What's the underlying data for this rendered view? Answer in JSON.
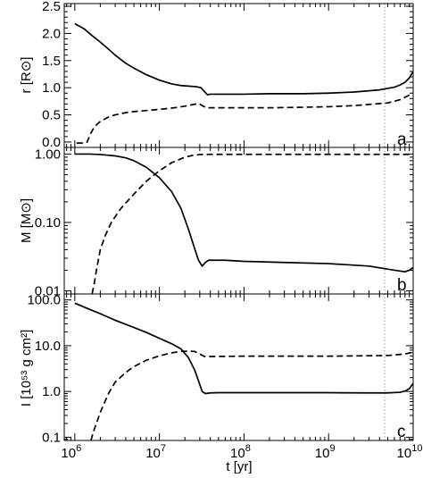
{
  "chart_data": [
    {
      "type": "line",
      "panel_label": "a",
      "ylabel": "r [R⊙]",
      "yscale": "linear",
      "ylim": [
        -0.1,
        2.55
      ],
      "yticks": [
        0.0,
        0.5,
        1.0,
        1.5,
        2.0,
        2.5
      ],
      "ytick_labels": [
        "0.0",
        "0.5",
        "1.0",
        "1.5",
        "2.0",
        "2.5"
      ],
      "series": [
        {
          "style": "solid",
          "x": [
            1000000.0,
            1300000.0,
            1600000.0,
            2000000.0,
            2500000.0,
            3000000.0,
            4000000.0,
            5000000.0,
            7000000.0,
            10000000.0,
            14000000.0,
            18000000.0,
            22000000.0,
            27000000.0,
            31000000.0,
            34000000.0,
            37000000.0,
            40000000.0,
            50000000.0,
            100000000.0,
            200000000.0,
            500000000.0,
            1000000000.0,
            2000000000.0,
            4000000000.0,
            6000000000.0,
            7000000000.0,
            8000000000.0,
            9000000000.0,
            10000000000.0
          ],
          "y": [
            2.18,
            2.08,
            1.96,
            1.84,
            1.71,
            1.6,
            1.45,
            1.36,
            1.24,
            1.14,
            1.07,
            1.04,
            1.03,
            1.02,
            1.0,
            0.93,
            0.87,
            0.88,
            0.88,
            0.88,
            0.89,
            0.89,
            0.9,
            0.92,
            0.96,
            1.01,
            1.05,
            1.1,
            1.18,
            1.3
          ]
        },
        {
          "style": "dashed",
          "x": [
            1050000.0,
            1300000.0,
            1400000.0,
            1500000.0,
            1700000.0,
            2000000.0,
            2500000.0,
            3000000.0,
            4000000.0,
            5000000.0,
            7000000.0,
            10000000.0,
            15000000.0,
            20000000.0,
            25000000.0,
            29000000.0,
            33000000.0,
            36000000.0,
            40000000.0,
            50000000.0,
            100000000.0,
            200000000.0,
            500000000.0,
            1000000000.0,
            2000000000.0,
            5000000000.0,
            7000000000.0,
            10000000000.0
          ],
          "y": [
            -0.02,
            -0.02,
            0.0,
            0.12,
            0.28,
            0.38,
            0.46,
            0.5,
            0.54,
            0.56,
            0.58,
            0.6,
            0.63,
            0.66,
            0.69,
            0.71,
            0.66,
            0.63,
            0.63,
            0.63,
            0.63,
            0.63,
            0.64,
            0.65,
            0.67,
            0.72,
            0.78,
            0.9
          ]
        }
      ]
    },
    {
      "type": "line",
      "panel_label": "b",
      "ylabel": "M [M⊙]",
      "yscale": "log",
      "ylim": [
        0.009,
        1.25
      ],
      "yticks": [
        0.01,
        0.1,
        1.0
      ],
      "ytick_labels": [
        "0.01",
        "0.10",
        "1.00"
      ],
      "series": [
        {
          "style": "solid",
          "x": [
            1000000.0,
            1500000.0,
            2000000.0,
            3000000.0,
            4000000.0,
            5000000.0,
            7000000.0,
            10000000.0,
            14000000.0,
            18000000.0,
            22000000.0,
            26000000.0,
            29000000.0,
            32000000.0,
            35000000.0,
            38000000.0,
            45000000.0,
            60000000.0,
            100000000.0,
            300000000.0,
            1000000000.0,
            3000000000.0,
            6000000000.0,
            8000000000.0,
            9000000000.0,
            10000000000.0
          ],
          "y": [
            1.0,
            1.0,
            0.985,
            0.94,
            0.88,
            0.8,
            0.64,
            0.45,
            0.28,
            0.16,
            0.08,
            0.042,
            0.028,
            0.023,
            0.026,
            0.028,
            0.028,
            0.028,
            0.027,
            0.026,
            0.025,
            0.023,
            0.02,
            0.019,
            0.02,
            0.022
          ]
        },
        {
          "style": "dashed",
          "x": [
            1600000.0,
            1700000.0,
            1800000.0,
            2000000.0,
            2300000.0,
            2700000.0,
            3500000.0,
            5000000.0,
            7000000.0,
            10000000.0,
            14000000.0,
            20000000.0,
            25000000.0,
            30000000.0,
            40000000.0,
            100000000.0,
            1000000000.0,
            10000000000.0
          ],
          "y": [
            0.009,
            0.013,
            0.02,
            0.04,
            0.065,
            0.1,
            0.16,
            0.26,
            0.4,
            0.57,
            0.75,
            0.9,
            0.96,
            0.985,
            0.99,
            0.99,
            0.99,
            0.99
          ]
        }
      ]
    },
    {
      "type": "line",
      "panel_label": "c",
      "ylabel": "I [10⁵³ g cm²]",
      "yscale": "log",
      "ylim": [
        0.085,
        135
      ],
      "yticks": [
        0.1,
        1.0,
        10.0,
        100.0
      ],
      "ytick_labels": [
        "0.1",
        "1.0",
        "10.0",
        "100.0"
      ],
      "series": [
        {
          "style": "solid",
          "x": [
            1000000.0,
            1500000.0,
            2000000.0,
            3000000.0,
            5000000.0,
            7000000.0,
            10000000.0,
            14000000.0,
            18000000.0,
            22000000.0,
            26000000.0,
            29000000.0,
            32000000.0,
            35000000.0,
            40000000.0,
            50000000.0,
            100000000.0,
            1000000000.0,
            3000000000.0,
            5000000000.0,
            7000000000.0,
            8000000000.0,
            9000000000.0,
            10000000000.0
          ],
          "y": [
            85,
            62,
            50,
            36,
            25,
            19.5,
            14.5,
            11,
            8.5,
            5.5,
            3.0,
            1.7,
            1.0,
            0.9,
            0.93,
            0.94,
            0.94,
            0.94,
            0.93,
            0.93,
            0.96,
            1.02,
            1.15,
            1.5
          ]
        },
        {
          "style": "dashed",
          "x": [
            1550000.0,
            1700000.0,
            2000000.0,
            2500000.0,
            3000000.0,
            4000000.0,
            5000000.0,
            7000000.0,
            10000000.0,
            14000000.0,
            18000000.0,
            22000000.0,
            26000000.0,
            30000000.0,
            34000000.0,
            40000000.0,
            100000000.0,
            1000000000.0,
            5000000000.0,
            8000000000.0,
            10000000000.0
          ],
          "y": [
            0.085,
            0.15,
            0.35,
            0.9,
            1.6,
            2.6,
            3.5,
            4.8,
            6.0,
            7.0,
            7.5,
            7.6,
            7.5,
            6.6,
            5.8,
            5.8,
            5.9,
            5.9,
            6.1,
            6.6,
            7.2
          ]
        }
      ]
    }
  ],
  "shared_x_axis": {
    "xlabel": "t [yr]",
    "xscale": "log",
    "xlim": [
      750000.0,
      10000000000.0
    ],
    "xticks": [
      1000000.0,
      10000000.0,
      100000000.0,
      1000000000.0,
      10000000000.0
    ],
    "xtick_labels": [
      {
        "base": "10",
        "exp": "6"
      },
      {
        "base": "10",
        "exp": "7"
      },
      {
        "base": "10",
        "exp": "8"
      },
      {
        "base": "10",
        "exp": "9"
      },
      {
        "base": "10",
        "exp": "10"
      }
    ]
  },
  "vertical_marker": {
    "x": 4600000000.0,
    "style": "dotted"
  },
  "colors": {
    "ink": "#000000",
    "marker": "#8a8a8a",
    "background": "#ffffff"
  }
}
